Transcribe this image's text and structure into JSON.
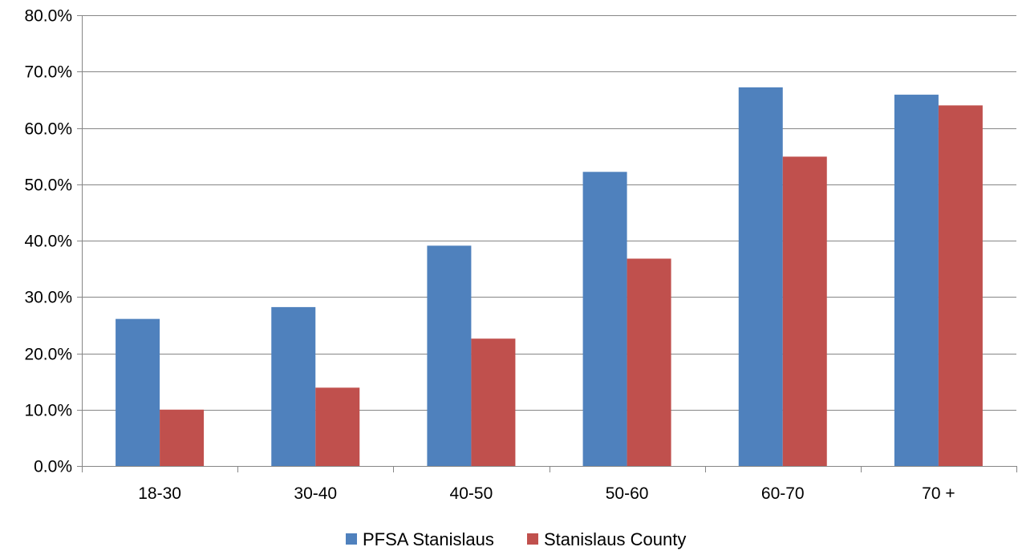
{
  "chart_data": {
    "type": "bar",
    "title": "",
    "xlabel": "",
    "ylabel": "",
    "categories": [
      "18-30",
      "30-40",
      "40-50",
      "50-60",
      "60-70",
      "70 +"
    ],
    "series": [
      {
        "name": "PFSA Stanislaus",
        "color": "#4F81BD",
        "values": [
          26.1,
          28.2,
          39.1,
          52.2,
          67.2,
          65.9
        ]
      },
      {
        "name": "Stanislaus County",
        "color": "#C0504D",
        "values": [
          10.0,
          13.9,
          22.6,
          36.8,
          54.9,
          64.0
        ]
      }
    ],
    "ylim": [
      0,
      80
    ],
    "yticks": [
      0,
      10,
      20,
      30,
      40,
      50,
      60,
      70,
      80
    ],
    "ytick_labels": [
      "0.0%",
      "10.0%",
      "20.0%",
      "30.0%",
      "40.0%",
      "50.0%",
      "60.0%",
      "70.0%",
      "80.0%"
    ],
    "grid": true,
    "legend_position": "bottom"
  }
}
